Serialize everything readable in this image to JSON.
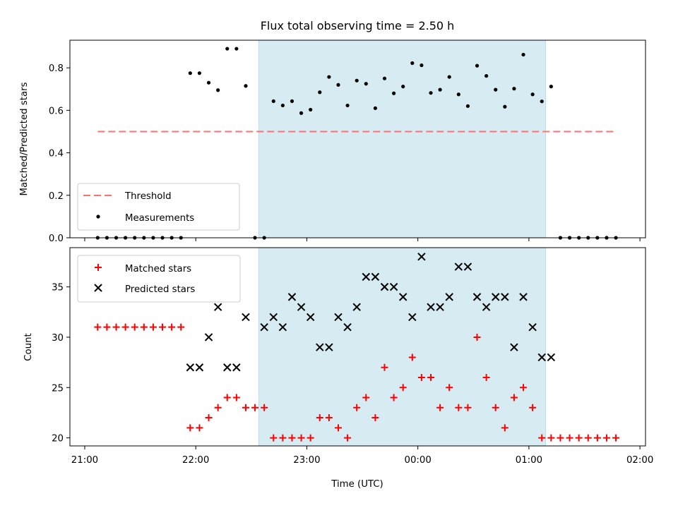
{
  "chart_data": [
    {
      "type": "scatter",
      "title": "Flux total observing time = 2.50 h",
      "xlabel": "",
      "ylabel": "Matched/Predicted stars",
      "ylim": [
        0,
        0.93
      ],
      "yticks": [
        "0.0",
        "0.2",
        "0.4",
        "0.6",
        "0.8"
      ],
      "xlim": [
        "20:52",
        "02:03"
      ],
      "shaded_interval": [
        "22:34",
        "01:09"
      ],
      "grid": false,
      "legend_position": "lower-left",
      "threshold": {
        "name": "Threshold",
        "value": 0.5,
        "x_range": [
          "21:07",
          "01:47"
        ],
        "color": "#ff7070",
        "style": "dashed"
      },
      "series": [
        {
          "name": "Measurements",
          "marker": "dot",
          "color": "#000000",
          "x": [
            "21:07",
            "21:12",
            "21:17",
            "21:22",
            "21:27",
            "21:32",
            "21:37",
            "21:42",
            "21:47",
            "21:52",
            "21:57",
            "22:02",
            "22:07",
            "22:12",
            "22:17",
            "22:22",
            "22:27",
            "22:32",
            "22:37",
            "22:42",
            "22:47",
            "22:52",
            "22:57",
            "23:02",
            "23:07",
            "23:12",
            "23:17",
            "23:22",
            "23:27",
            "23:32",
            "23:37",
            "23:42",
            "23:47",
            "23:52",
            "23:57",
            "00:02",
            "00:07",
            "00:12",
            "00:17",
            "00:22",
            "00:27",
            "00:32",
            "00:37",
            "00:42",
            "00:47",
            "00:52",
            "00:57",
            "01:02",
            "01:07",
            "01:12",
            "01:17",
            "01:22",
            "01:27",
            "01:32",
            "01:37",
            "01:42",
            "01:47"
          ],
          "y": [
            0,
            0,
            0,
            0,
            0,
            0,
            0,
            0,
            0,
            0,
            0.775,
            0.775,
            0.73,
            0.695,
            0.89,
            0.89,
            0.715,
            0,
            0,
            0.643,
            0.623,
            0.643,
            0.587,
            0.603,
            0.685,
            0.757,
            0.72,
            0.623,
            0.74,
            0.725,
            0.61,
            0.75,
            0.68,
            0.712,
            0.822,
            0.812,
            0.682,
            0.697,
            0.757,
            0.675,
            0.62,
            0.81,
            0.762,
            0.697,
            0.617,
            0.702,
            0.862,
            0.675,
            0.642,
            0.712,
            0,
            0,
            0,
            0,
            0,
            0,
            0
          ]
        }
      ]
    },
    {
      "type": "scatter",
      "title": "",
      "xlabel": "Time (UTC)",
      "ylabel": "Count",
      "ylim": [
        19.2,
        38.9
      ],
      "yticks": [
        "20",
        "25",
        "30",
        "35"
      ],
      "xlim": [
        "20:52",
        "02:03"
      ],
      "xticks": [
        "21:00",
        "22:00",
        "23:00",
        "00:00",
        "01:00",
        "02:00"
      ],
      "shaded_interval": [
        "22:34",
        "01:09"
      ],
      "grid": false,
      "legend_position": "upper-left",
      "series": [
        {
          "name": "Matched stars",
          "marker": "plus",
          "color": "#ff0000",
          "x": [
            "21:07",
            "21:12",
            "21:17",
            "21:22",
            "21:27",
            "21:32",
            "21:37",
            "21:42",
            "21:47",
            "21:52",
            "21:57",
            "22:02",
            "22:07",
            "22:12",
            "22:17",
            "22:22",
            "22:27",
            "22:32",
            "22:37",
            "22:42",
            "22:47",
            "22:52",
            "22:57",
            "23:02",
            "23:07",
            "23:12",
            "23:17",
            "23:22",
            "23:27",
            "23:32",
            "23:37",
            "23:42",
            "23:47",
            "23:52",
            "23:57",
            "00:02",
            "00:07",
            "00:12",
            "00:17",
            "00:22",
            "00:27",
            "00:32",
            "00:37",
            "00:42",
            "00:47",
            "00:52",
            "00:57",
            "01:02",
            "01:07",
            "01:12",
            "01:17",
            "01:22",
            "01:27",
            "01:32",
            "01:37",
            "01:42",
            "01:47"
          ],
          "y": [
            31,
            31,
            31,
            31,
            31,
            31,
            31,
            31,
            31,
            31,
            21,
            21,
            22,
            23,
            24,
            24,
            23,
            23,
            23,
            20,
            20,
            20,
            20,
            20,
            22,
            22,
            21,
            20,
            23,
            24,
            22,
            27,
            24,
            25,
            28,
            26,
            26,
            23,
            25,
            23,
            23,
            30,
            26,
            23,
            21,
            24,
            25,
            23,
            20,
            20,
            20,
            20,
            20,
            20,
            20,
            20,
            20
          ]
        },
        {
          "name": "Predicted stars",
          "marker": "x",
          "color": "#000000",
          "x": [
            "21:57",
            "22:02",
            "22:07",
            "22:12",
            "22:17",
            "22:22",
            "22:27",
            "22:37",
            "22:42",
            "22:47",
            "22:52",
            "22:57",
            "23:02",
            "23:07",
            "23:12",
            "23:17",
            "23:22",
            "23:27",
            "23:32",
            "23:37",
            "23:42",
            "23:47",
            "23:52",
            "23:57",
            "00:02",
            "00:07",
            "00:12",
            "00:17",
            "00:22",
            "00:27",
            "00:32",
            "00:37",
            "00:42",
            "00:47",
            "00:52",
            "00:57",
            "01:02",
            "01:07",
            "01:12"
          ],
          "y": [
            27,
            27,
            30,
            33,
            27,
            27,
            32,
            31,
            32,
            31,
            34,
            33,
            32,
            29,
            29,
            32,
            31,
            33,
            36,
            36,
            35,
            35,
            34,
            32,
            38,
            33,
            33,
            34,
            37,
            37,
            34,
            33,
            34,
            34,
            29,
            34,
            31,
            28,
            28
          ]
        }
      ]
    }
  ]
}
